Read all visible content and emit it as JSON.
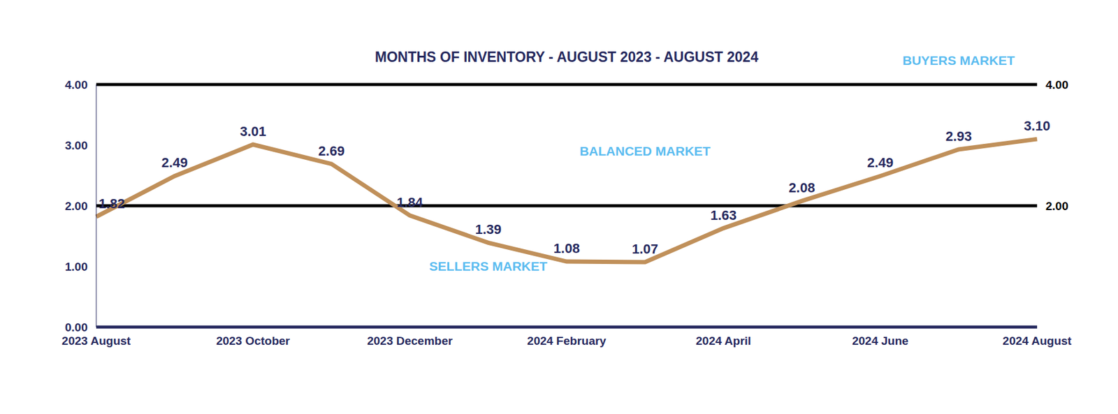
{
  "chart_data": {
    "type": "line",
    "title": "MONTHS OF INVENTORY - AUGUST 2023 - AUGUST 2024",
    "categories": [
      "2023 August",
      null,
      "2023 October",
      null,
      "2023 December",
      null,
      "2024 February",
      null,
      "2024 April",
      null,
      "2024 June",
      null,
      "2024 August"
    ],
    "values": [
      1.82,
      2.49,
      3.01,
      2.69,
      1.84,
      1.39,
      1.08,
      1.07,
      1.63,
      2.08,
      2.49,
      2.93,
      3.1
    ],
    "value_labels": [
      "1.82",
      "2.49",
      "3.01",
      "2.69",
      "1.84",
      "1.39",
      "1.08",
      "1.07",
      "1.63",
      "2.08",
      "2.49",
      "2.93",
      "3.10"
    ],
    "color": "#c0905a",
    "ylim": [
      0,
      4
    ],
    "yticks": [
      {
        "value": 0,
        "label": "0.00"
      },
      {
        "value": 1,
        "label": "1.00"
      },
      {
        "value": 2,
        "label": "2.00"
      },
      {
        "value": 3,
        "label": "3.00"
      },
      {
        "value": 4,
        "label": "4.00"
      }
    ],
    "reference_lines": [
      {
        "y": 2,
        "label": "2.00"
      },
      {
        "y": 4,
        "label": "4.00"
      }
    ],
    "annotations": [
      {
        "text": "BUYERS MARKET",
        "x": 11,
        "y": 4.4
      },
      {
        "text": "BALANCED MARKET",
        "x": 7,
        "y": 2.9
      },
      {
        "text": "SELLERS MARKET",
        "x": 5,
        "y": 1.0
      }
    ],
    "grid": false,
    "data_labels": true
  }
}
